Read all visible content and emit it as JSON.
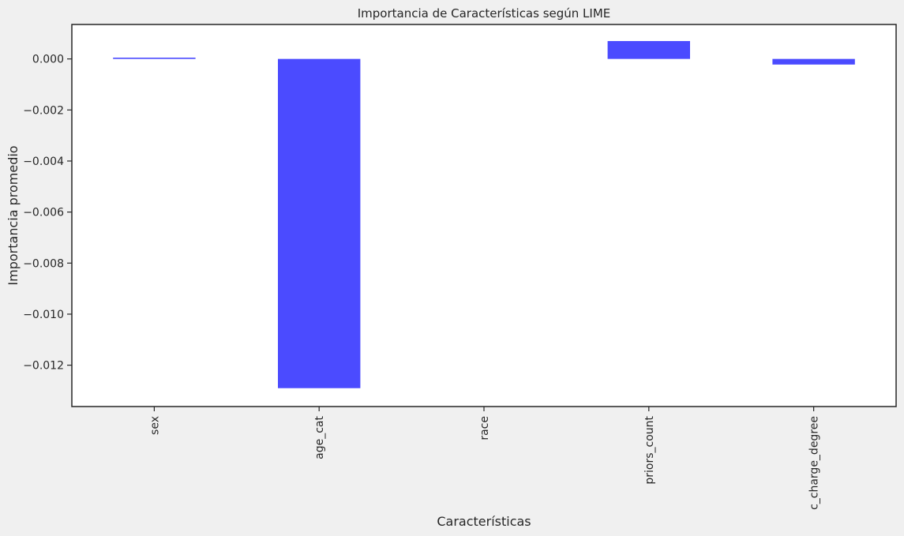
{
  "chart_data": {
    "type": "bar",
    "title": "Importancia de Características según LIME",
    "xlabel": "Características",
    "ylabel": "Importancia promedio",
    "categories": [
      "sex",
      "age_cat",
      "race",
      "priors_count",
      "c_charge_degree"
    ],
    "values": [
      5e-05,
      -0.0129,
      0.0,
      0.0007,
      -0.00022
    ],
    "ylim": [
      -0.01362,
      0.00135
    ],
    "yticks": [
      0.0,
      -0.002,
      -0.004,
      -0.006,
      -0.008,
      -0.01,
      -0.012
    ],
    "ytick_labels": [
      "0.000",
      "−0.002",
      "−0.004",
      "−0.006",
      "−0.008",
      "−0.010",
      "−0.012"
    ],
    "grid": false,
    "bar_color": "#4b4bff",
    "plot_background": "#ffffff",
    "figure_background": "#f0f0f0"
  }
}
